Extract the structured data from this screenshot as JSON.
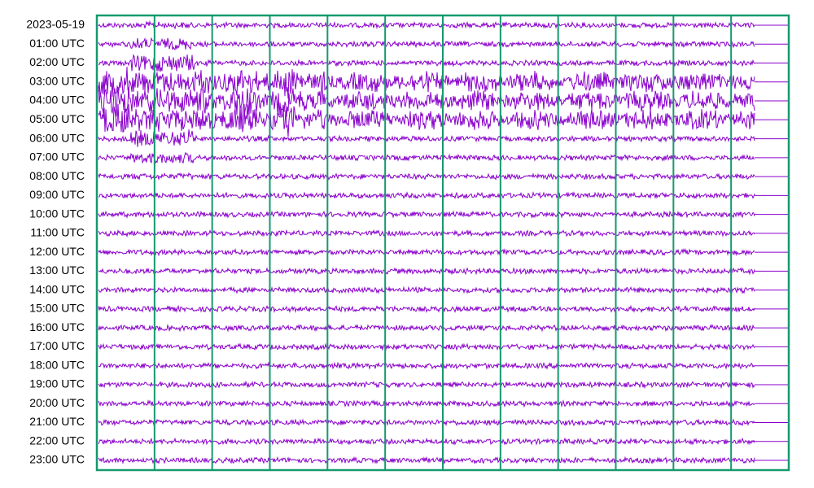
{
  "rows": [
    "2023-05-19",
    "01:00 UTC",
    "02:00 UTC",
    "03:00 UTC",
    "04:00 UTC",
    "05:00 UTC",
    "06:00 UTC",
    "07:00 UTC",
    "08:00 UTC",
    "09:00 UTC",
    "10:00 UTC",
    "11:00 UTC",
    "12:00 UTC",
    "13:00 UTC",
    "14:00 UTC",
    "15:00 UTC",
    "16:00 UTC",
    "17:00 UTC",
    "18:00 UTC",
    "19:00 UTC",
    "20:00 UTC",
    "21:00 UTC",
    "22:00 UTC",
    "23:00 UTC"
  ]
}
